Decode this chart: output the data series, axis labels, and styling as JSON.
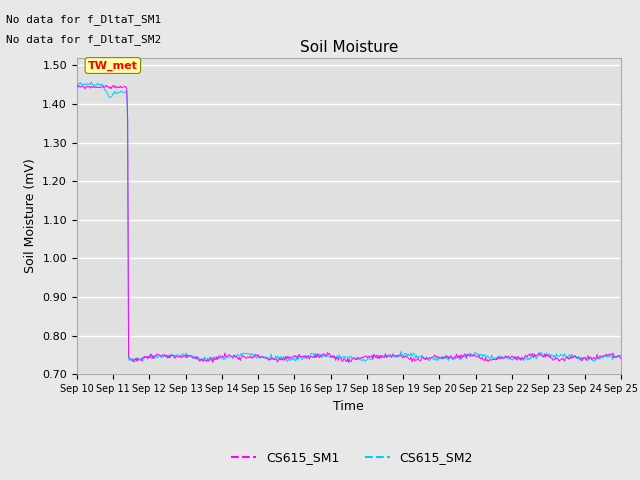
{
  "title": "Soil Moisture",
  "ylabel": "Soil Moisture (mV)",
  "xlabel": "Time",
  "ylim": [
    0.7,
    1.52
  ],
  "yticks": [
    0.7,
    0.8,
    0.9,
    1.0,
    1.1,
    1.2,
    1.3,
    1.4,
    1.5
  ],
  "no_data_text1": "No data for f_DltaT_SM1",
  "no_data_text2": "No data for f_DltaT_SM2",
  "tw_met_label": "TW_met",
  "legend_labels": [
    "CS615_SM1",
    "CS615_SM2"
  ],
  "legend_colors": [
    "#ff00ff",
    "#00ccff"
  ],
  "fig_facecolor": "#e8e8e8",
  "plot_facecolor": "#e0e0e0",
  "grid_color": "#ffffff",
  "title_fontsize": 11,
  "label_fontsize": 9,
  "tick_fontsize": 8,
  "nodata_fontsize": 8,
  "twmet_fontsize": 8
}
